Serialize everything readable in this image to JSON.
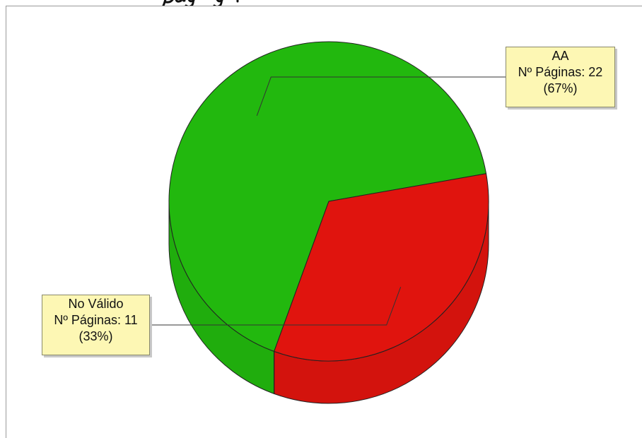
{
  "chart_data": {
    "type": "pie",
    "style": "3d",
    "slices": [
      {
        "name": "AA",
        "value_label": "Nº Páginas: 22",
        "percent_label": "(67%)",
        "value": 22,
        "percent": 67,
        "color": "#22b80e"
      },
      {
        "name": "No Válido",
        "value_label": "Nº Páginas: 11",
        "percent_label": "(33%)",
        "value": 11,
        "percent": 33,
        "color": "#e0140e"
      }
    ],
    "label_style": "callout"
  }
}
